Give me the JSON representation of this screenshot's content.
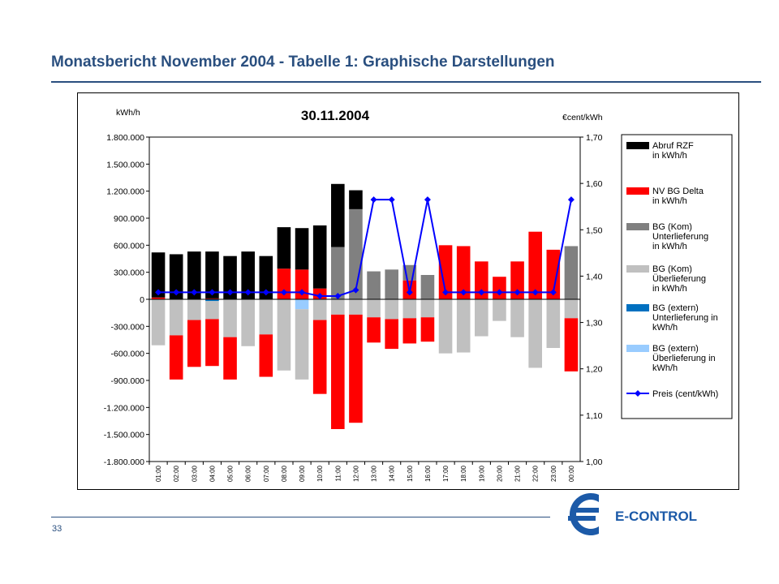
{
  "header": {
    "title": "Monatsbericht November 2004 - Tabelle 1: Graphische Darstellungen"
  },
  "footer": {
    "page_number": "33",
    "logo_text": "E-CONTROL"
  },
  "colors": {
    "title": "#2a4f7f",
    "abruf": "#000000",
    "nv": "#ff0000",
    "unter": "#808080",
    "ueber": "#c0c0c0",
    "ext_unter": "#0070c0",
    "ext_ueber": "#99ccff",
    "preis": "#0000ff"
  },
  "chart_data": {
    "type": "bar",
    "title": "30.11.2004",
    "ylabel_left": "kWh/h",
    "ylabel_right": "€cent/kWh",
    "ylim_left": [
      -1800000,
      1800000
    ],
    "ylim_right": [
      1.0,
      1.7
    ],
    "yticks_left": [
      "1.800.000",
      "1.500.000",
      "1.200.000",
      "900.000",
      "600.000",
      "300.000",
      "0",
      "-300.000",
      "-600.000",
      "-900.000",
      "-1.200.000",
      "-1.500.000",
      "-1.800.000"
    ],
    "yticks_right": [
      "1,70",
      "1,60",
      "1,50",
      "1,40",
      "1,30",
      "1,20",
      "1,10",
      "1,00"
    ],
    "categories": [
      "01:00",
      "02:00",
      "03:00",
      "04:00",
      "05:00",
      "06:00",
      "07:00",
      "08:00",
      "09:00",
      "10:00",
      "11:00",
      "12:00",
      "13:00",
      "14:00",
      "15:00",
      "16:00",
      "17:00",
      "18:00",
      "19:00",
      "20:00",
      "21:00",
      "22:00",
      "23:00",
      "00:00"
    ],
    "legend_position": "right",
    "series": [
      {
        "name": "Abruf RZF\nin kWh/h",
        "key": "abruf",
        "values": [
          520000,
          500000,
          530000,
          530000,
          480000,
          530000,
          480000,
          800000,
          790000,
          820000,
          1280000,
          1210000,
          0,
          0,
          0,
          0,
          0,
          0,
          0,
          0,
          0,
          0,
          0,
          0
        ]
      },
      {
        "name": "NV BG Delta\nin kWh/h",
        "key": "nv",
        "values": [
          20000,
          0,
          0,
          10000,
          0,
          0,
          0,
          340000,
          330000,
          120000,
          0,
          0,
          0,
          0,
          210000,
          0,
          600000,
          590000,
          420000,
          250000,
          420000,
          750000,
          550000,
          0
        ]
      },
      {
        "name": "NV BG Delta\nin kWh/h (neg)",
        "key": "nv_neg",
        "values": [
          0,
          -490000,
          -520000,
          -520000,
          -470000,
          0,
          -470000,
          0,
          0,
          -820000,
          -1270000,
          -1200000,
          -280000,
          -330000,
          -280000,
          -270000,
          0,
          0,
          0,
          0,
          0,
          0,
          0,
          -590000
        ]
      },
      {
        "name": "BG (Kom)\nUnterlieferung\nin kWh/h",
        "key": "unter",
        "values": [
          0,
          0,
          0,
          0,
          0,
          0,
          0,
          0,
          0,
          0,
          580000,
          1000000,
          310000,
          330000,
          170000,
          270000,
          0,
          0,
          0,
          0,
          0,
          0,
          0,
          590000
        ]
      },
      {
        "name": "BG (Kom)\nÜberlieferung\nin kWh/h",
        "key": "ueber",
        "values": [
          -510000,
          -400000,
          -230000,
          -200000,
          -420000,
          -520000,
          -390000,
          -790000,
          -780000,
          -230000,
          -170000,
          -170000,
          -200000,
          -220000,
          -210000,
          -200000,
          -600000,
          -590000,
          -410000,
          -240000,
          -420000,
          -760000,
          -540000,
          -210000
        ]
      },
      {
        "name": "BG (extern)\nUnterlieferung in\nkWh/h",
        "key": "ext_unter",
        "values": [
          0,
          0,
          0,
          -20000,
          0,
          0,
          0,
          0,
          0,
          0,
          0,
          0,
          0,
          0,
          0,
          0,
          0,
          0,
          0,
          0,
          0,
          0,
          0,
          0
        ]
      },
      {
        "name": "BG (extern)\nÜberlieferung in\nkWh/h",
        "key": "ext_ueber",
        "values": [
          0,
          0,
          0,
          0,
          0,
          0,
          0,
          0,
          -110000,
          0,
          0,
          0,
          0,
          0,
          0,
          0,
          0,
          0,
          0,
          0,
          0,
          0,
          0,
          0
        ]
      },
      {
        "name": "Preis (cent/kWh)",
        "key": "preis",
        "axis": "right",
        "values": [
          1.365,
          1.365,
          1.365,
          1.365,
          1.365,
          1.365,
          1.365,
          1.365,
          1.365,
          1.357,
          1.357,
          1.37,
          1.565,
          1.565,
          1.365,
          1.565,
          1.365,
          1.365,
          1.365,
          1.365,
          1.365,
          1.365,
          1.365,
          1.565
        ]
      }
    ],
    "legend": [
      {
        "label": "Abruf RZF\nin kWh/h",
        "swatch": "abruf"
      },
      {
        "label": "NV BG Delta\nin kWh/h",
        "swatch": "nv"
      },
      {
        "label": "BG (Kom)\nUnterlieferung\nin kWh/h",
        "swatch": "unter"
      },
      {
        "label": "BG (Kom)\nÜberlieferung\nin kWh/h",
        "swatch": "ueber"
      },
      {
        "label": "BG (extern)\nUnterlieferung in\nkWh/h",
        "swatch": "ext_unter"
      },
      {
        "label": "BG (extern)\nÜberlieferung in\nkWh/h",
        "swatch": "ext_ueber"
      },
      {
        "label": "Preis (cent/kWh)",
        "swatch": "preis"
      }
    ]
  }
}
